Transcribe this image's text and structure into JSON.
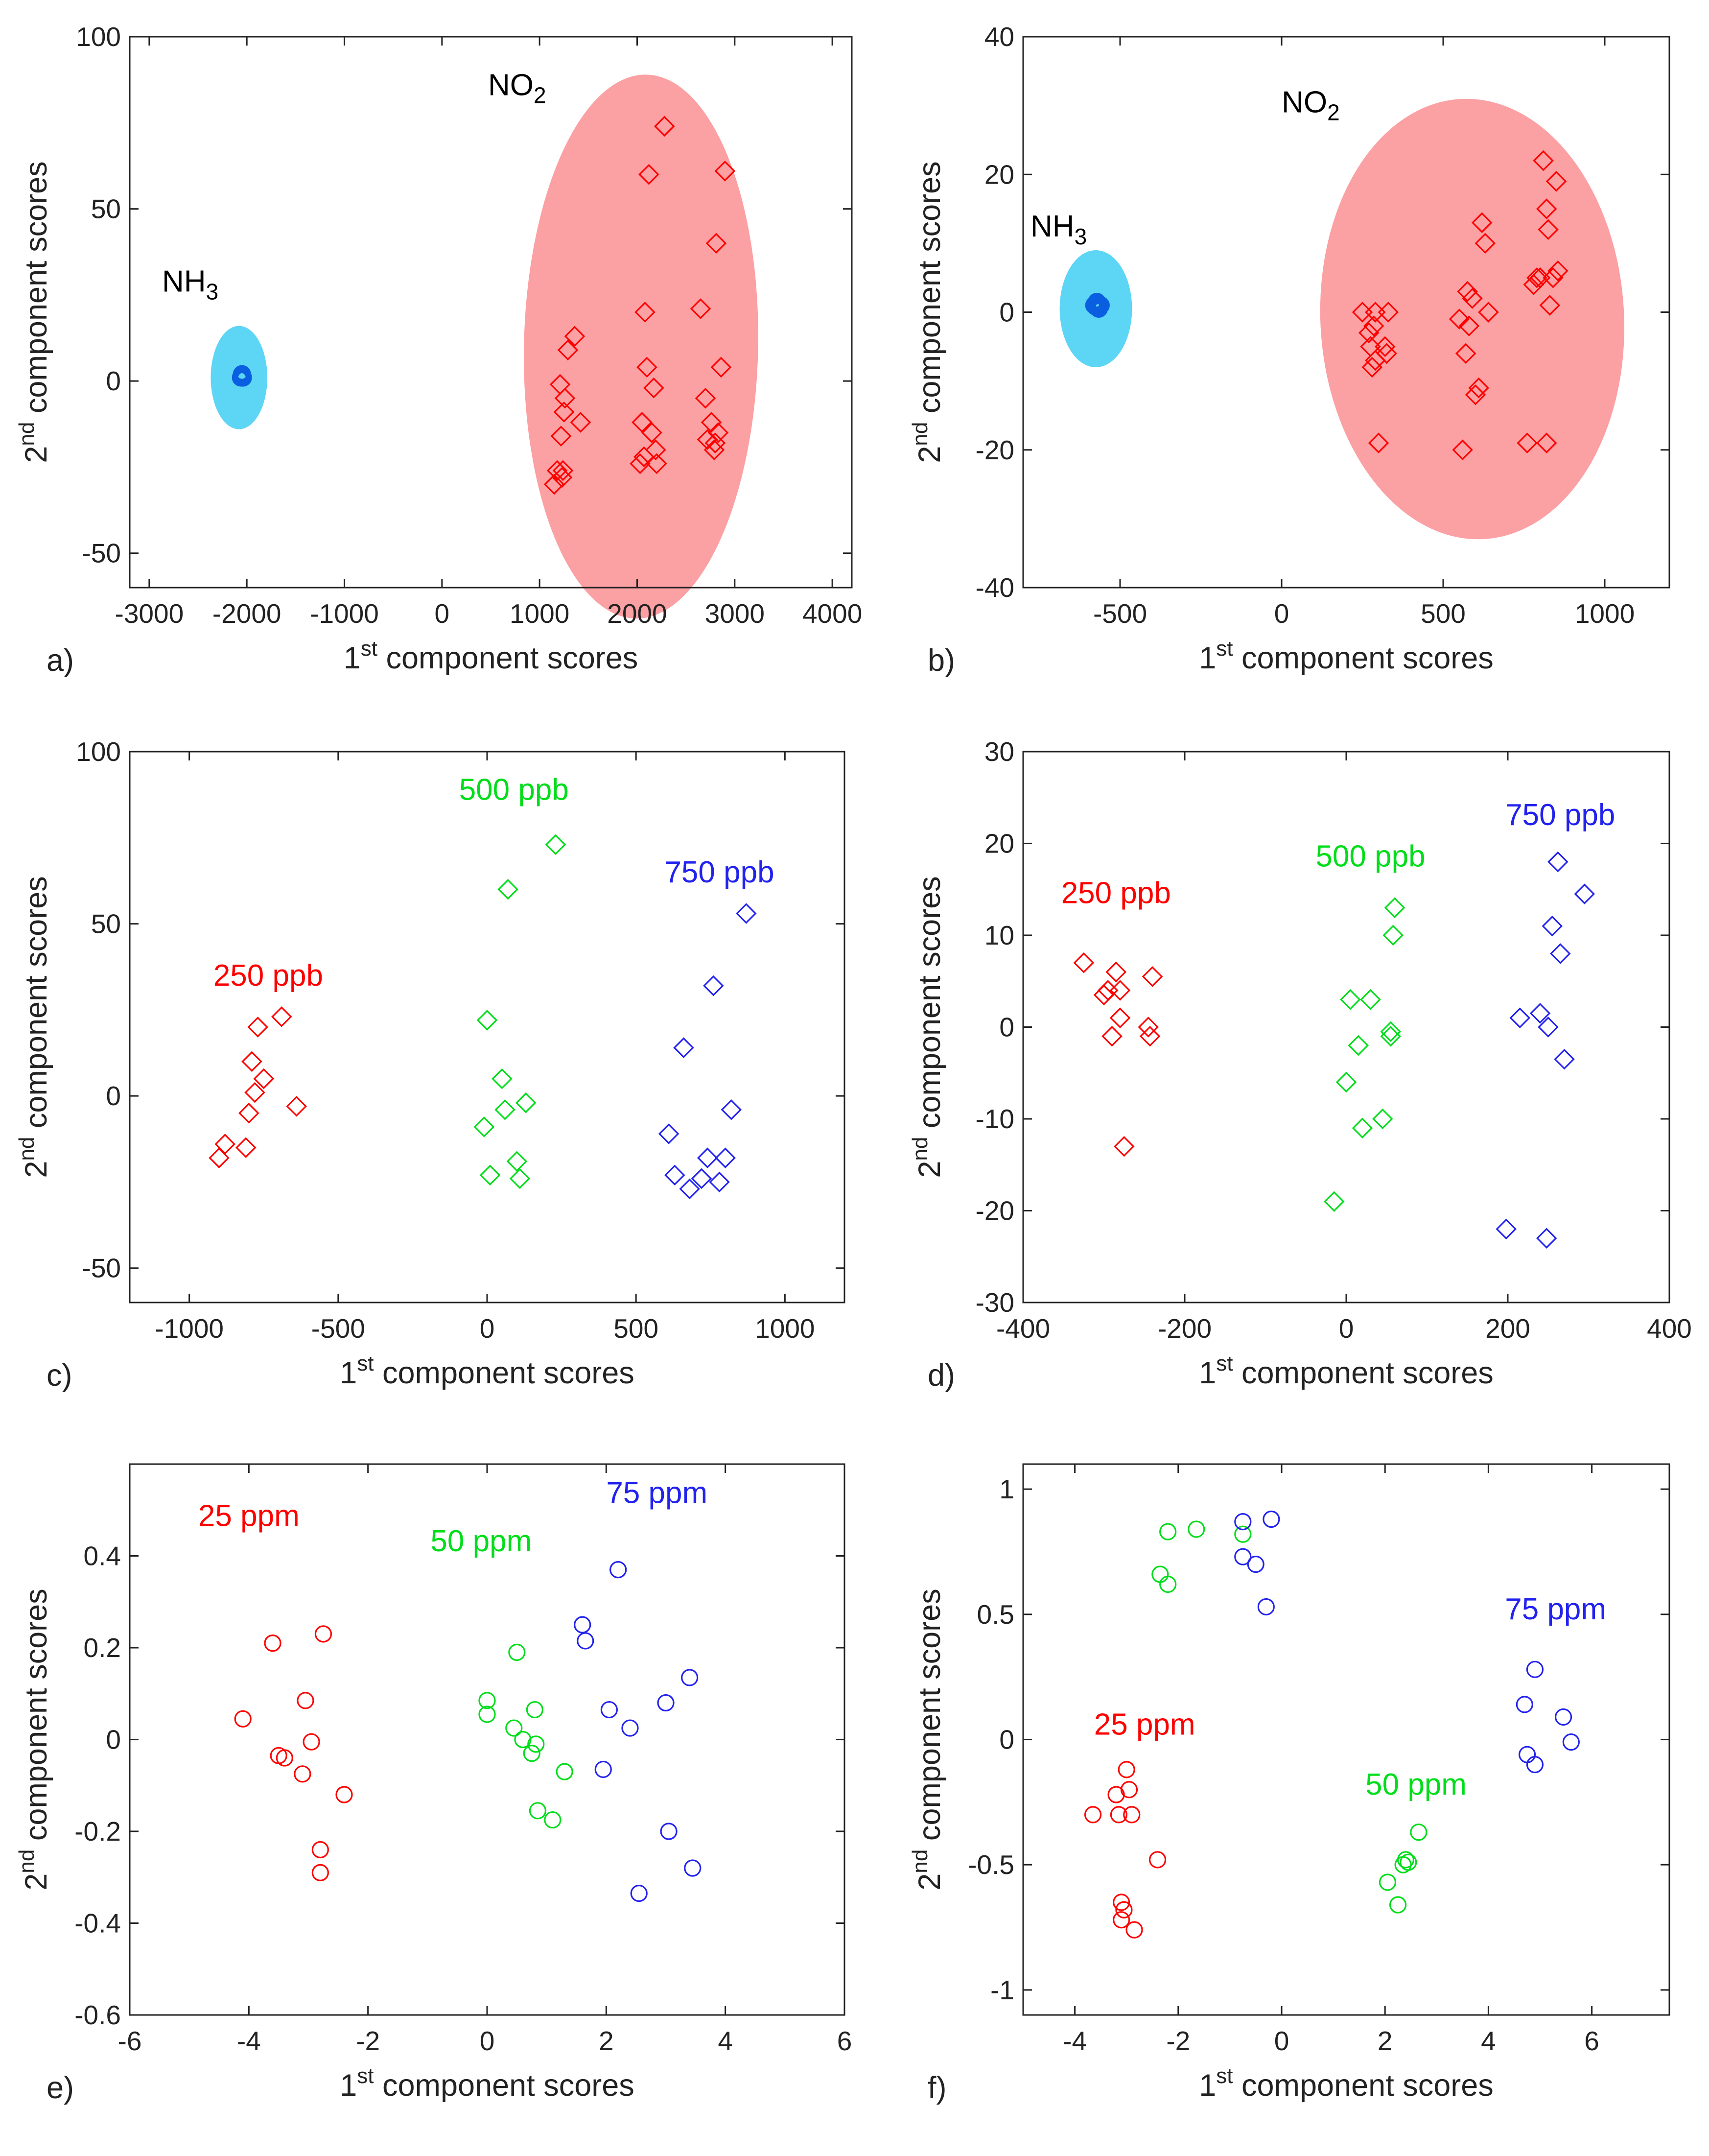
{
  "figure": {
    "colors": {
      "red": "#ff0000",
      "green": "#00dd1a",
      "blue": "#2222ee",
      "nh3_fill": "#5dd5f5",
      "no2_fill": "#fba0a3",
      "nh3_point": "#0a5fe0",
      "axis": "#222222"
    },
    "axis_label_x_main": "1",
    "axis_label_x_sup": "st",
    "axis_label_x_rest": " component scores",
    "axis_label_y_main": "2",
    "axis_label_y_sup": "nd",
    "axis_label_y_rest": " component scores"
  },
  "chart_data": [
    {
      "panel": "a)",
      "type": "scatter",
      "xlim": [
        -3200,
        4200
      ],
      "ylim": [
        -60,
        100
      ],
      "xticks": [
        -3000,
        -2000,
        -1000,
        0,
        1000,
        2000,
        3000,
        4000
      ],
      "xtick_labels": [
        "-3000",
        "-2000",
        "-1000",
        "0",
        "1000",
        "2000",
        "3000",
        "4000"
      ],
      "yticks": [
        -50,
        0,
        50,
        100
      ],
      "ytick_labels": [
        "-50",
        "0",
        "50",
        "100"
      ],
      "ellipses": [
        {
          "name": "NH3 region",
          "cx": -2080,
          "cy": 1,
          "rx": 290,
          "ry": 15,
          "angle": 0,
          "color": "#5dd5f5"
        },
        {
          "name": "NO2 region",
          "cx": 2040,
          "cy": 10,
          "rx": 1200,
          "ry": 79,
          "angle": 0.02,
          "color": "#fba0a3"
        }
      ],
      "series": [
        {
          "name": "NH3",
          "marker": "circle-filled",
          "color": "#0a5fe0",
          "x": [
            -2040,
            -2060,
            -2050
          ],
          "y": [
            1,
            1,
            2
          ]
        },
        {
          "name": "NO2",
          "marker": "diamond",
          "color": "#ff0000",
          "x": [
            1150,
            1180,
            1230,
            1220,
            1250,
            1260,
            1290,
            1360,
            1420,
            1210,
            1240,
            2030,
            2050,
            2070,
            2100,
            2120,
            2150,
            2170,
            2190,
            2200,
            2080,
            2280,
            2650,
            2700,
            2720,
            2760,
            2790,
            2810,
            2830,
            2860,
            2900,
            2800
          ],
          "y": [
            -30,
            -26,
            -28,
            -16,
            -9,
            -5,
            9,
            13,
            -12,
            -1,
            -26,
            -24,
            -12,
            -22,
            4,
            60,
            -15,
            -2,
            -20,
            -24,
            20,
            74,
            21,
            -5,
            -17,
            -12,
            -20,
            40,
            -15,
            4,
            61,
            -18
          ]
        }
      ],
      "labels": [
        {
          "text": "NH",
          "sub": "3",
          "x": -2580,
          "y": 26,
          "color": "#000000"
        },
        {
          "text": "NO",
          "sub": "2",
          "x": 770,
          "y": 83,
          "color": "#000000"
        }
      ]
    },
    {
      "panel": "b)",
      "type": "scatter",
      "xlim": [
        -800,
        1200
      ],
      "ylim": [
        -40,
        40
      ],
      "xticks": [
        -500,
        0,
        500,
        1000
      ],
      "xtick_labels": [
        "-500",
        "0",
        "500",
        "1000"
      ],
      "yticks": [
        -40,
        -20,
        0,
        20,
        40
      ],
      "ytick_labels": [
        "-40",
        "-20",
        "0",
        "20",
        "40"
      ],
      "ellipses": [
        {
          "name": "NH3 region",
          "cx": -575,
          "cy": 0.5,
          "rx": 112,
          "ry": 8.5,
          "angle": 0,
          "color": "#5dd5f5"
        },
        {
          "name": "NO2 region",
          "cx": 590,
          "cy": -1,
          "rx": 470,
          "ry": 32,
          "angle": -0.05,
          "color": "#fba0a3"
        }
      ],
      "series": [
        {
          "name": "NH3",
          "marker": "circle-filled",
          "color": "#0a5fe0",
          "x": [
            -580,
            -572,
            -566,
            -560,
            -575
          ],
          "y": [
            1,
            1.5,
            0.5,
            1,
            0.8
          ]
        },
        {
          "name": "NO2",
          "marker": "diamond",
          "color": "#ff0000",
          "x": [
            250,
            270,
            275,
            280,
            285,
            290,
            300,
            320,
            330,
            325,
            290,
            560,
            570,
            575,
            580,
            590,
            600,
            610,
            620,
            630,
            640,
            550,
            760,
            780,
            800,
            810,
            820,
            825,
            830,
            840,
            850,
            855,
            790,
            820
          ],
          "y": [
            0,
            -3,
            -5,
            -8,
            -2,
            0,
            -19,
            -5,
            0,
            -6,
            -7,
            -20,
            -6,
            3,
            -2,
            2,
            -12,
            -11,
            13,
            10,
            0,
            -1,
            -19,
            4,
            5,
            22,
            15,
            12,
            1,
            5,
            19,
            6,
            5,
            -19
          ]
        }
      ],
      "labels": [
        {
          "text": "NH",
          "sub": "3",
          "x": -690,
          "y": 11,
          "color": "#000000"
        },
        {
          "text": "NO",
          "sub": "2",
          "x": 90,
          "y": 29,
          "color": "#000000"
        }
      ]
    },
    {
      "panel": "c)",
      "type": "scatter",
      "xlim": [
        -1200,
        1200
      ],
      "ylim": [
        -60,
        100
      ],
      "xticks": [
        -1000,
        -500,
        0,
        500,
        1000
      ],
      "xtick_labels": [
        "-1000",
        "-500",
        "0",
        "500",
        "1000"
      ],
      "yticks": [
        -50,
        0,
        50,
        100
      ],
      "ytick_labels": [
        "-50",
        "0",
        "50",
        "100"
      ],
      "ellipses": [],
      "series": [
        {
          "name": "250 ppb",
          "marker": "diamond",
          "color": "#ff0000",
          "x": [
            -900,
            -880,
            -810,
            -800,
            -780,
            -770,
            -750,
            -690,
            -640,
            -790
          ],
          "y": [
            -18,
            -14,
            -15,
            -5,
            1,
            20,
            5,
            23,
            -3,
            10
          ]
        },
        {
          "name": "500 ppb",
          "marker": "diamond",
          "color": "#00dd1a",
          "x": [
            -10,
            0,
            10,
            50,
            60,
            70,
            100,
            110,
            130,
            230
          ],
          "y": [
            -9,
            22,
            -23,
            5,
            -4,
            60,
            -19,
            -24,
            -2,
            73
          ]
        },
        {
          "name": "750 ppb",
          "marker": "diamond",
          "color": "#2222ee",
          "x": [
            610,
            630,
            660,
            680,
            720,
            740,
            760,
            780,
            800,
            820,
            870
          ],
          "y": [
            -11,
            -23,
            14,
            -27,
            -24,
            -18,
            32,
            -25,
            -18,
            -4,
            53
          ]
        }
      ],
      "labels": [
        {
          "text": "250 ppb",
          "x": -735,
          "y": 32,
          "color": "#ff0000"
        },
        {
          "text": "500 ppb",
          "x": 90,
          "y": 86,
          "color": "#00dd1a"
        },
        {
          "text": "750 ppb",
          "x": 780,
          "y": 62,
          "color": "#2222ee"
        }
      ]
    },
    {
      "panel": "d)",
      "type": "scatter",
      "xlim": [
        -400,
        400
      ],
      "ylim": [
        -30,
        30
      ],
      "xticks": [
        -400,
        -200,
        0,
        200,
        400
      ],
      "xtick_labels": [
        "-400",
        "-200",
        "0",
        "200",
        "400"
      ],
      "yticks": [
        -30,
        -20,
        -10,
        0,
        10,
        20,
        30
      ],
      "ytick_labels": [
        "-30",
        "-20",
        "-10",
        "0",
        "10",
        "20",
        "30"
      ],
      "ellipses": [],
      "series": [
        {
          "name": "250 ppb",
          "marker": "diamond",
          "color": "#ff0000",
          "x": [
            -325,
            -300,
            -295,
            -290,
            -285,
            -280,
            -275,
            -280,
            -245,
            -240,
            -243
          ],
          "y": [
            7,
            3.5,
            4,
            -1,
            6,
            4,
            -13,
            1,
            0,
            5.5,
            -1
          ]
        },
        {
          "name": "500 ppb",
          "marker": "diamond",
          "color": "#00dd1a",
          "x": [
            -15,
            0,
            5,
            15,
            20,
            30,
            45,
            55,
            58,
            60,
            55
          ],
          "y": [
            -19,
            -6,
            3,
            -2,
            -11,
            3,
            -10,
            -1,
            10,
            13,
            -0.5
          ]
        },
        {
          "name": "750 ppb",
          "marker": "diamond",
          "color": "#2222ee",
          "x": [
            198,
            215,
            240,
            248,
            250,
            255,
            262,
            265,
            270,
            295
          ],
          "y": [
            -22,
            1,
            1.5,
            -23,
            0,
            11,
            18,
            8,
            -3.5,
            14.5
          ]
        }
      ],
      "labels": [
        {
          "text": "250 ppb",
          "x": -285,
          "y": 13.5,
          "color": "#ff0000"
        },
        {
          "text": "500 ppb",
          "x": 30,
          "y": 17.5,
          "color": "#00dd1a"
        },
        {
          "text": "750 ppb",
          "x": 265,
          "y": 22,
          "color": "#2222ee"
        }
      ]
    },
    {
      "panel": "e)",
      "type": "scatter",
      "xlim": [
        -6,
        6
      ],
      "ylim": [
        -0.6,
        0.6
      ],
      "xticks": [
        -6,
        -4,
        -2,
        0,
        2,
        4,
        6
      ],
      "xtick_labels": [
        "-6",
        "-4",
        "-2",
        "0",
        "2",
        "4",
        "6"
      ],
      "yticks": [
        -0.6,
        -0.4,
        -0.2,
        0,
        0.2,
        0.4
      ],
      "ytick_labels": [
        "-0.6",
        "-0.4",
        "-0.2",
        "0",
        "0.2",
        "0.4"
      ],
      "ellipses": [],
      "series": [
        {
          "name": "25 ppm",
          "marker": "circle",
          "color": "#ff0000",
          "x": [
            -4.1,
            -3.6,
            -3.5,
            -3.4,
            -3.1,
            -3.05,
            -2.95,
            -2.8,
            -2.8,
            -2.75,
            -2.4
          ],
          "y": [
            0.045,
            0.21,
            -0.035,
            -0.04,
            -0.075,
            0.085,
            -0.005,
            -0.29,
            -0.24,
            0.23,
            -0.12
          ]
        },
        {
          "name": "50 ppm",
          "marker": "circle",
          "color": "#00dd1a",
          "x": [
            0.0,
            0.0,
            0.45,
            0.5,
            0.6,
            0.75,
            0.8,
            0.82,
            0.85,
            1.1,
            1.3
          ],
          "y": [
            0.085,
            0.055,
            0.025,
            0.19,
            0.0,
            -0.03,
            0.065,
            -0.01,
            -0.155,
            -0.175,
            -0.07
          ]
        },
        {
          "name": "75 ppm",
          "marker": "circle",
          "color": "#2222ee",
          "x": [
            1.6,
            1.65,
            1.95,
            2.05,
            2.2,
            2.4,
            2.55,
            3.0,
            3.05,
            3.4,
            3.45
          ],
          "y": [
            0.25,
            0.215,
            -0.065,
            0.065,
            0.37,
            0.025,
            -0.335,
            0.08,
            -0.2,
            0.135,
            -0.28
          ]
        }
      ],
      "labels": [
        {
          "text": "25 ppm",
          "x": -4.0,
          "y": 0.465,
          "color": "#ff0000"
        },
        {
          "text": "50 ppm",
          "x": -0.1,
          "y": 0.41,
          "color": "#00dd1a"
        },
        {
          "text": "75 ppm",
          "x": 2.85,
          "y": 0.515,
          "color": "#2222ee"
        }
      ]
    },
    {
      "panel": "f)",
      "type": "scatter",
      "xlim": [
        -5,
        7.5
      ],
      "ylim": [
        -1.1,
        1.1
      ],
      "xticks": [
        -4,
        -2,
        0,
        2,
        4,
        6
      ],
      "xtick_labels": [
        "-4",
        "-2",
        "0",
        "2",
        "4",
        "6"
      ],
      "yticks": [
        -1,
        -0.5,
        0,
        0.5,
        1
      ],
      "ytick_labels": [
        "-1",
        "-0.5",
        "0",
        "0.5",
        "1"
      ],
      "ellipses": [],
      "series": [
        {
          "name": "25 ppm",
          "marker": "circle",
          "color": "#ff0000",
          "x": [
            -3.65,
            -3.2,
            -3.15,
            -3.1,
            -3.1,
            -3.05,
            -3.0,
            -2.95,
            -2.9,
            -2.85,
            -2.4
          ],
          "y": [
            -0.3,
            -0.22,
            -0.3,
            -0.65,
            -0.72,
            -0.68,
            -0.12,
            -0.2,
            -0.3,
            -0.76,
            -0.48
          ]
        },
        {
          "name": "50 ppm",
          "marker": "circle",
          "color": "#00dd1a",
          "x": [
            -2.35,
            -2.2,
            -2.2,
            -1.65,
            -0.75,
            2.05,
            2.25,
            2.35,
            2.4,
            2.45,
            2.65
          ],
          "y": [
            0.66,
            0.83,
            0.62,
            0.84,
            0.82,
            -0.57,
            -0.66,
            -0.5,
            -0.48,
            -0.49,
            -0.37
          ]
        },
        {
          "name": "75 ppm",
          "marker": "circle",
          "color": "#2222ee",
          "x": [
            -0.75,
            -0.75,
            -0.5,
            -0.3,
            -0.2,
            4.7,
            4.75,
            4.9,
            4.9,
            5.45,
            5.6
          ],
          "y": [
            0.87,
            0.73,
            0.7,
            0.53,
            0.88,
            0.14,
            -0.06,
            0.28,
            -0.1,
            0.09,
            -0.01
          ]
        }
      ],
      "labels": [
        {
          "text": "25 ppm",
          "x": -2.65,
          "y": 0.02,
          "color": "#ff0000"
        },
        {
          "text": "50 ppm",
          "x": 2.6,
          "y": -0.22,
          "color": "#00dd1a"
        },
        {
          "text": "75 ppm",
          "x": 5.3,
          "y": 0.48,
          "color": "#2222ee"
        }
      ]
    }
  ]
}
